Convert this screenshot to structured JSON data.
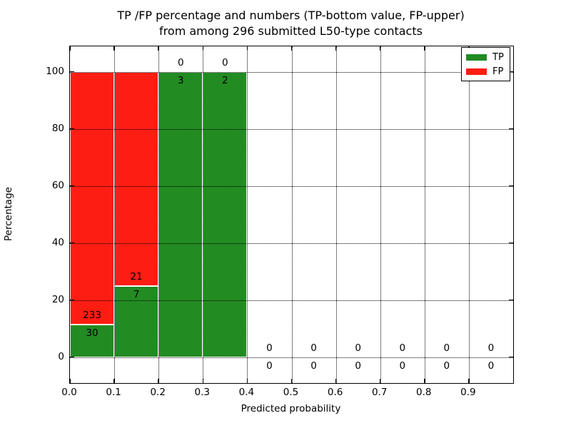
{
  "header": {
    "title_line1": "TP /FP percentage and numbers (TP-bottom value, FP-upper)",
    "title_line2": "from among 296 submitted L50-type contacts"
  },
  "axes": {
    "x_label": "Predicted probability",
    "y_label": "Percentage"
  },
  "legend": {
    "items": [
      {
        "label": "TP",
        "color": "#228b22"
      },
      {
        "label": "FP",
        "color": "#fd1d12"
      }
    ]
  },
  "chart_data": {
    "type": "bar",
    "stacked": true,
    "title": "TP /FP percentage and numbers (TP-bottom value, FP-upper)\nfrom among 296 submitted L50-type contacts",
    "xlabel": "Predicted probability",
    "ylabel": "Percentage",
    "total_submitted_contacts": 296,
    "grid": "dotted black, drawn above bars",
    "legend_position": "upper right",
    "bar_edge_color": "#ffffff",
    "xlim": [
      0.0,
      1.0
    ],
    "ylim": [
      -9.1,
      108.9
    ],
    "bin_width": 0.1,
    "bin_starts": [
      0.0,
      0.1,
      0.2,
      0.3,
      0.4,
      0.5,
      0.6,
      0.7,
      0.8,
      0.9
    ],
    "x_tick_values": [
      0.0,
      0.1,
      0.2,
      0.3,
      0.4,
      0.5,
      0.6,
      0.7,
      0.8,
      0.9
    ],
    "x_tick_labels": [
      "0.0",
      "0.1",
      "0.2",
      "0.3",
      "0.4",
      "0.5",
      "0.6",
      "0.7",
      "0.8",
      "0.9"
    ],
    "y_tick_values": [
      0,
      20,
      40,
      60,
      80,
      100
    ],
    "y_tick_labels": [
      "0",
      "20",
      "40",
      "60",
      "80",
      "100"
    ],
    "series": [
      {
        "name": "TP",
        "color": "#228b22",
        "counts": [
          30,
          7,
          3,
          2,
          0,
          0,
          0,
          0,
          0,
          0
        ],
        "percentages": [
          11.41,
          25.0,
          100.0,
          100.0,
          0,
          0,
          0,
          0,
          0,
          0
        ]
      },
      {
        "name": "FP",
        "color": "#fd1d12",
        "counts": [
          233,
          21,
          0,
          0,
          0,
          0,
          0,
          0,
          0,
          0
        ],
        "percentages": [
          88.59,
          75.0,
          0,
          0,
          0,
          0,
          0,
          0,
          0,
          0
        ]
      }
    ]
  }
}
